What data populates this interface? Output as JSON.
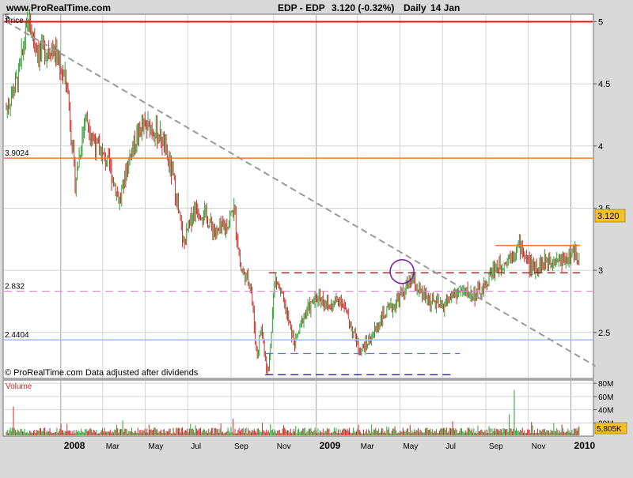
{
  "header": {
    "site": "www.ProRealTime.com",
    "instrument": "EDP - EDP",
    "last": "3.120 (-0.32%)",
    "period": "Daily",
    "date": "14 Jan"
  },
  "price_panel": {
    "label": "Price",
    "footer": "© ProRealTime.com Data adjusted after dividends",
    "last_badge": "3.120"
  },
  "volume_panel": {
    "label": "Volume",
    "last_badge": "5,805K"
  },
  "colors": {
    "frame_bg": "#d9d9d9",
    "plot_bg": "#ffffff",
    "grid": "#d4d4d4",
    "up_candle": "#2e9e2e",
    "down_candle": "#cc2a2a",
    "badge": "#f4bf2a",
    "resistance_red": "#e81010",
    "resistance_orange": "#ee7a3c",
    "support_blue": "#a8c4ec",
    "trend_gray": "#9a9a9a",
    "dash_darkred": "#8c1010",
    "dash_pink": "#d98ccc",
    "dash_navy": "#0a0a9c",
    "dash_lightblue": "#5a6ef0",
    "circle": "#7a1aa0"
  },
  "chart_data": [
    {
      "type": "line",
      "title": "EDP - EDP",
      "subtitle": "3.120 (-0.32%) Daily 14 Jan",
      "ylabel": "Price",
      "ylim": [
        2.13,
        5.06
      ],
      "x_range": [
        "2007-10-15",
        "2010-01-14"
      ],
      "x_ticks": [
        "2008",
        "Mar",
        "May",
        "Jul",
        "Sep",
        "Nov",
        "2009",
        "Mar",
        "May",
        "Jul",
        "Sep",
        "Nov",
        "2010"
      ],
      "y_ticks": [
        2.5,
        3,
        3.5,
        4,
        4.5,
        5
      ],
      "grid": true,
      "last_value": 3.12,
      "series": [
        {
          "values": [
            [
              "2007-10-15",
              4.3
            ],
            [
              "2007-11-01",
              4.55
            ],
            [
              "2007-11-15",
              5.0
            ],
            [
              "2007-12-01",
              4.75
            ],
            [
              "2007-12-20",
              4.8
            ],
            [
              "2008-01-10",
              4.5
            ],
            [
              "2008-01-22",
              3.7
            ],
            [
              "2008-02-05",
              4.25
            ],
            [
              "2008-02-20",
              4.0
            ],
            [
              "2008-03-10",
              3.85
            ],
            [
              "2008-03-25",
              3.55
            ],
            [
              "2008-04-10",
              3.95
            ],
            [
              "2008-04-25",
              4.15
            ],
            [
              "2008-05-10",
              4.15
            ],
            [
              "2008-05-25",
              4.05
            ],
            [
              "2008-06-10",
              3.75
            ],
            [
              "2008-06-25",
              3.2
            ],
            [
              "2008-07-10",
              3.5
            ],
            [
              "2008-07-25",
              3.45
            ],
            [
              "2008-08-10",
              3.3
            ],
            [
              "2008-08-25",
              3.35
            ],
            [
              "2008-09-05",
              3.5
            ],
            [
              "2008-09-15",
              3.0
            ],
            [
              "2008-09-29",
              2.9
            ],
            [
              "2008-10-08",
              2.3
            ],
            [
              "2008-10-14",
              2.55
            ],
            [
              "2008-10-24",
              2.15
            ],
            [
              "2008-11-03",
              2.95
            ],
            [
              "2008-11-15",
              2.75
            ],
            [
              "2008-12-01",
              2.4
            ],
            [
              "2008-12-15",
              2.65
            ],
            [
              "2009-01-05",
              2.8
            ],
            [
              "2009-01-20",
              2.7
            ],
            [
              "2009-02-05",
              2.78
            ],
            [
              "2009-02-20",
              2.55
            ],
            [
              "2009-03-05",
              2.35
            ],
            [
              "2009-03-20",
              2.45
            ],
            [
              "2009-04-05",
              2.62
            ],
            [
              "2009-04-20",
              2.7
            ],
            [
              "2009-05-05",
              2.82
            ],
            [
              "2009-05-18",
              2.92
            ],
            [
              "2009-06-01",
              2.8
            ],
            [
              "2009-06-15",
              2.75
            ],
            [
              "2009-06-30",
              2.7
            ],
            [
              "2009-07-15",
              2.8
            ],
            [
              "2009-07-30",
              2.83
            ],
            [
              "2009-08-15",
              2.8
            ],
            [
              "2009-08-30",
              2.85
            ],
            [
              "2009-09-10",
              3.0
            ],
            [
              "2009-09-25",
              3.05
            ],
            [
              "2009-10-10",
              3.15
            ],
            [
              "2009-10-20",
              3.2
            ],
            [
              "2009-11-05",
              3.02
            ],
            [
              "2009-11-20",
              3.05
            ],
            [
              "2009-12-05",
              3.1
            ],
            [
              "2009-12-20",
              3.08
            ],
            [
              "2010-01-05",
              3.14
            ],
            [
              "2010-01-14",
              3.12
            ]
          ]
        }
      ],
      "horizontal_lines": [
        {
          "value": 5,
          "label": "5",
          "style": "solid",
          "color": "#e81010"
        },
        {
          "value": 3.9024,
          "label": "3.9024",
          "style": "solid",
          "color": "#ee7a3c"
        },
        {
          "value": 2.832,
          "label": "2.832",
          "style": "dashed",
          "color": "#d98ccc"
        },
        {
          "value": 2.4404,
          "label": "2.4404",
          "style": "solid",
          "color": "#a8c4ec"
        }
      ],
      "segments": [
        {
          "x0": "2009-09-15",
          "x1": "2010-01-14",
          "value": 3.2,
          "style": "solid",
          "color": "#ee7a3c"
        },
        {
          "x0": "2008-10-25",
          "x1": "2010-01-14",
          "value": 2.98,
          "style": "dashed",
          "color": "#8c1010"
        },
        {
          "x0": "2008-10-20",
          "x1": "2009-07-26",
          "value": 2.33,
          "style": "dashed",
          "color": "#5a6ef0"
        },
        {
          "x0": "2008-10-20",
          "x1": "2009-07-18",
          "value": 2.16,
          "style": "dashed",
          "color": "#0a0a9c"
        }
      ],
      "trendline": {
        "x0": "2007-10-15",
        "y0": 5.0,
        "x1": "2010-02-05",
        "y1": 2.23,
        "style": "dashed",
        "color": "#9a9a9a"
      },
      "annotation_circle": {
        "x": "2009-05-04",
        "y": 2.99
      }
    },
    {
      "type": "bar",
      "title": "Volume",
      "ylim": [
        0,
        85
      ],
      "y_ticks": [
        {
          "value": 20,
          "label": "20M"
        },
        {
          "value": 40,
          "label": "40M"
        },
        {
          "value": 60,
          "label": "60M"
        },
        {
          "value": 80,
          "label": "80M"
        }
      ],
      "unit": "M",
      "last_value": "5,805K",
      "notable": [
        {
          "x": "2007-10-25",
          "value": 45
        },
        {
          "x": "2009-10-12",
          "value": 70
        },
        {
          "x": "2009-10-05",
          "value": 33
        }
      ]
    }
  ]
}
